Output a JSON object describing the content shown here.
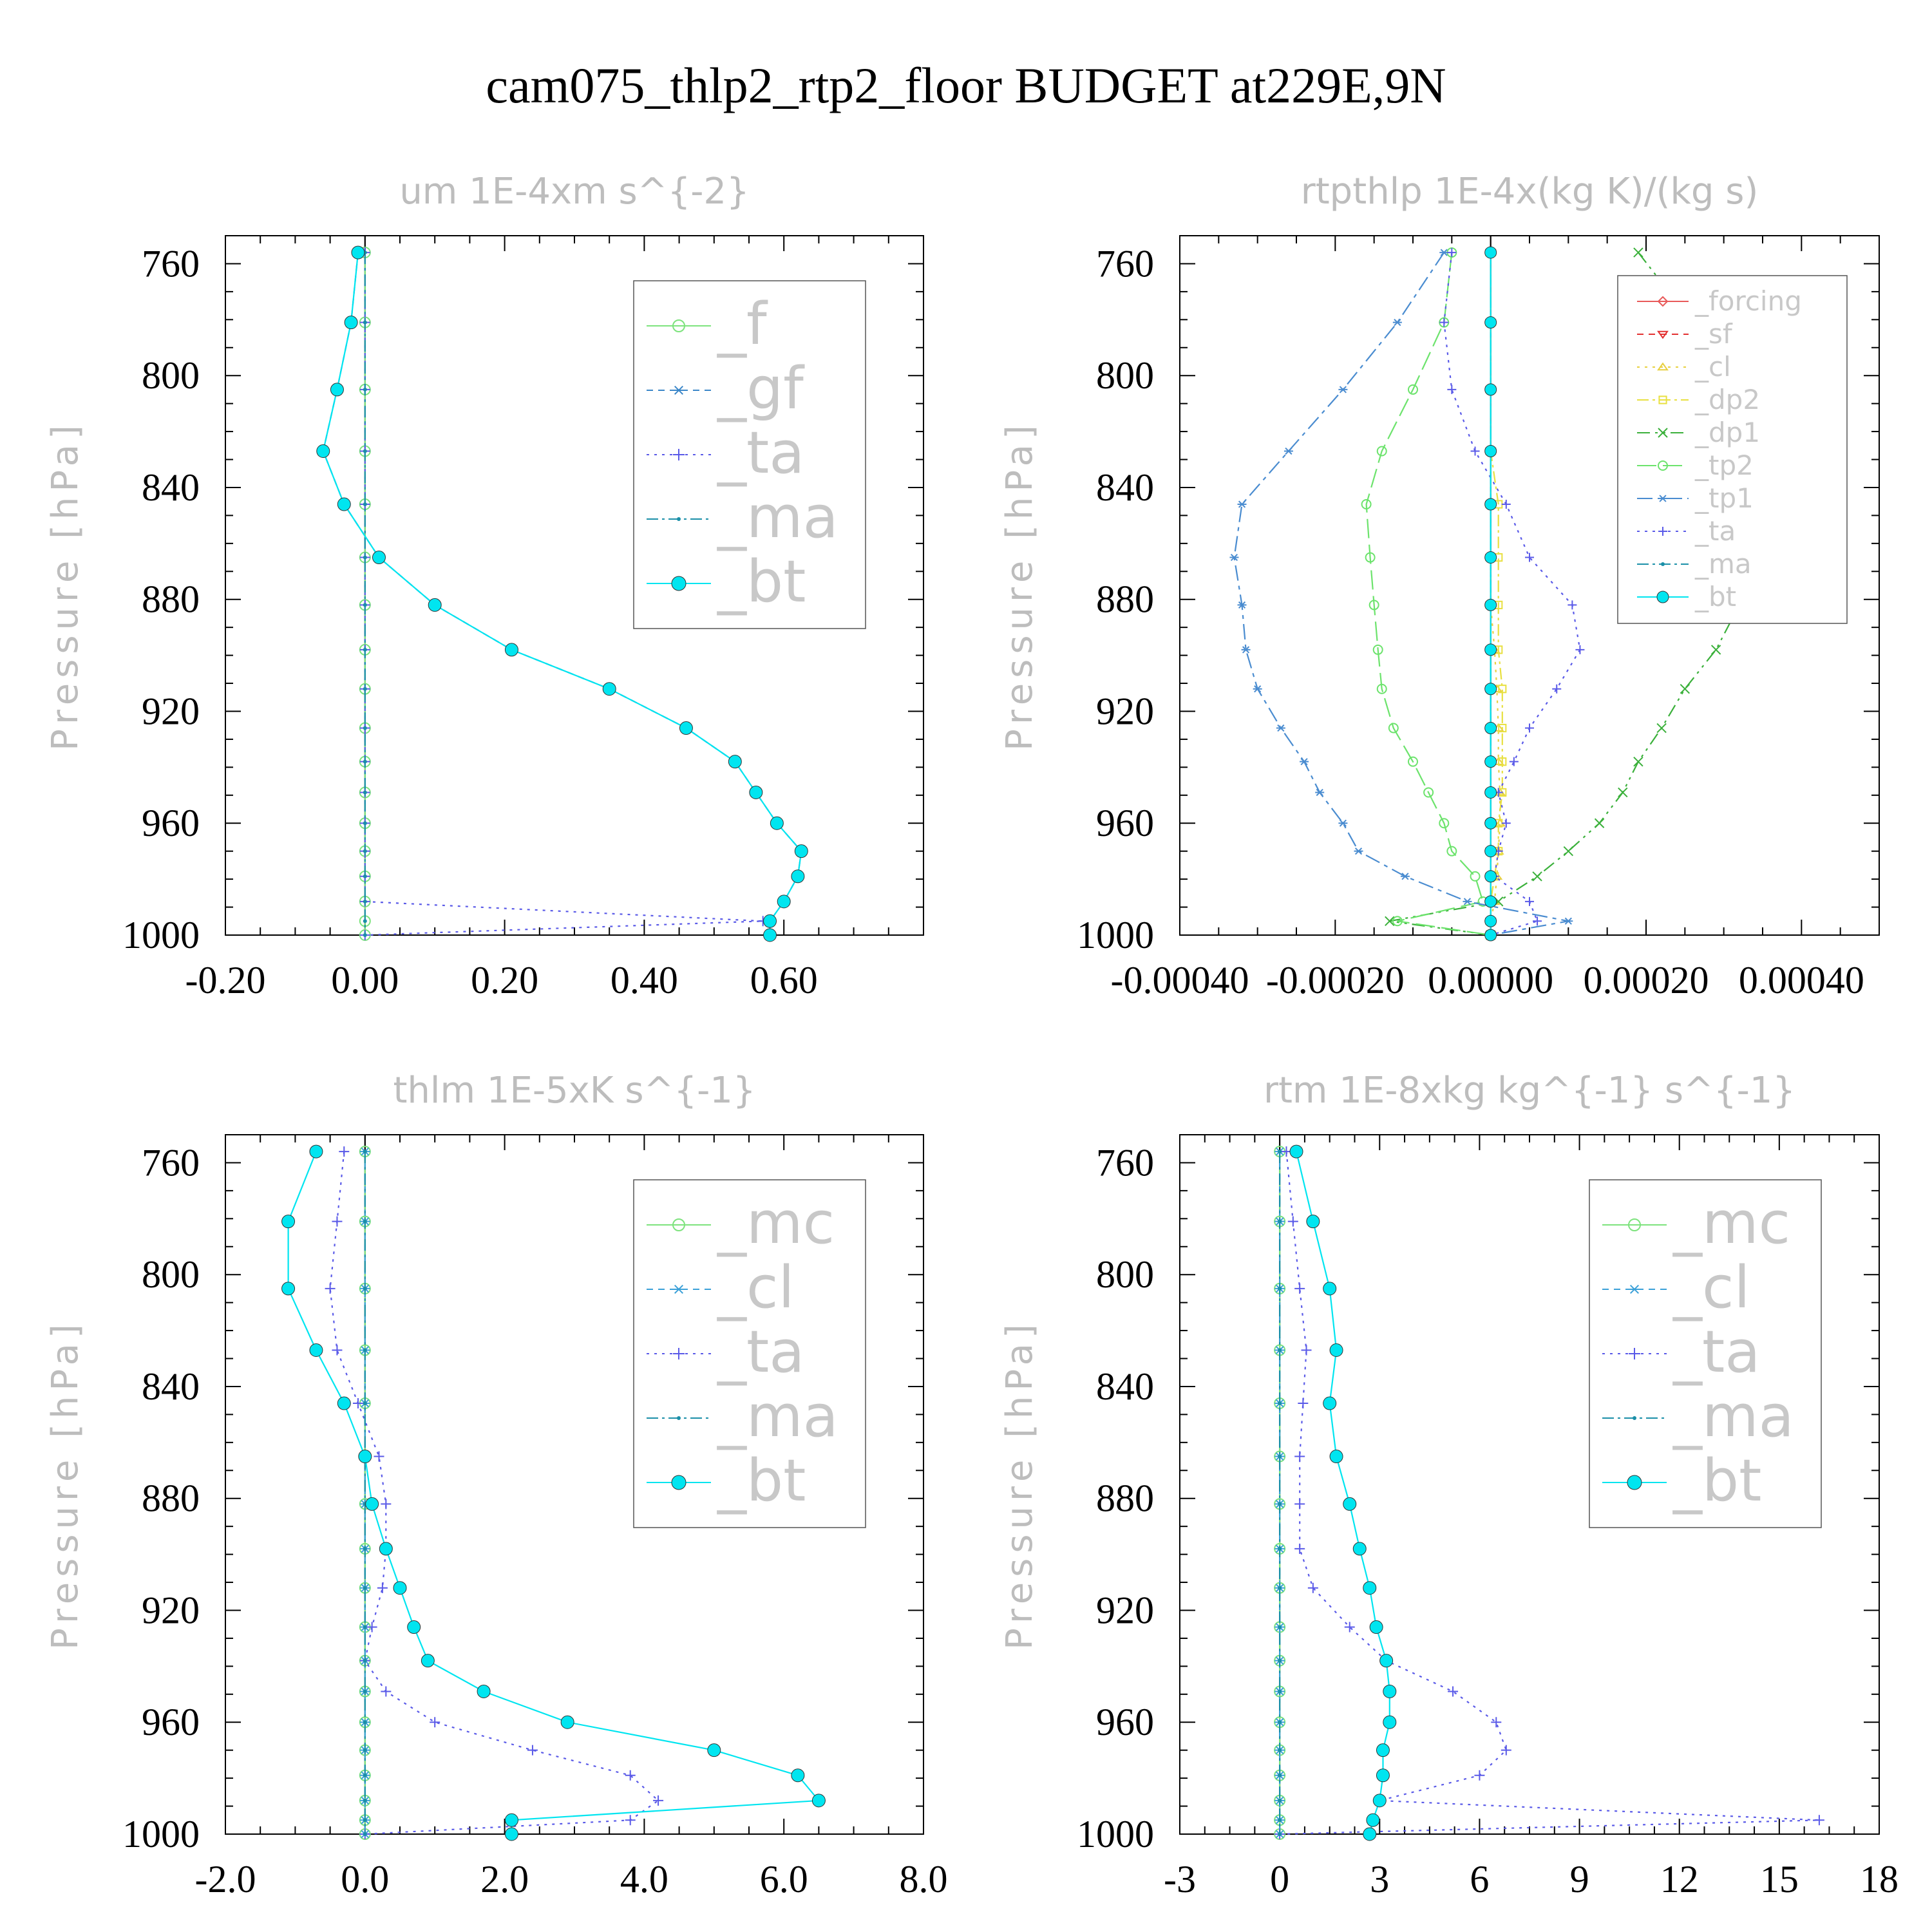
{
  "title": "cam075_thlp2_rtp2_floor  BUDGET at229E,9N",
  "colors": {
    "f": "#7de37d",
    "gf": "#3a86c8",
    "ta": "#5a5ae8",
    "ma": "#1a8fa8",
    "bt": "#00e5f0",
    "forcing": "#e85a5a",
    "sf": "#e33030",
    "cl_yellow": "#e8d040",
    "dp2": "#e8e040",
    "dp1": "#3ab03a",
    "tp2": "#6ce36c",
    "tp1": "#4a8cd0",
    "mc": "#7de37d",
    "cl_blue": "#3aa0d8"
  },
  "chart_data": [
    {
      "type": "line",
      "title": "um   1E-4xm s^{-2}",
      "ylabel": "Pressure [hPa]",
      "xlim": [
        -0.2,
        0.8
      ],
      "ylim": [
        1000,
        750
      ],
      "xticks": [
        -0.2,
        0.0,
        0.2,
        0.4,
        0.6
      ],
      "xtick_labels": [
        "-0.20",
        "0.00",
        "0.20",
        "0.40",
        "0.60"
      ],
      "yticks": [
        760,
        800,
        840,
        880,
        920,
        960,
        1000
      ],
      "ytick_labels": [
        "760",
        "800",
        "840",
        "880",
        "920",
        "960",
        "1000"
      ],
      "legend_position": "top-right",
      "legend_size": "large",
      "y": [
        756,
        781,
        805,
        827,
        846,
        865,
        882,
        898,
        912,
        926,
        938,
        949,
        960,
        970,
        979,
        988,
        995,
        1000
      ],
      "series": [
        {
          "name": "_f",
          "color_key": "f",
          "marker": "circle-open",
          "dash": "",
          "values": [
            0,
            0,
            0,
            0,
            0,
            0,
            0,
            0,
            0,
            0,
            0,
            0,
            0,
            0,
            0,
            0,
            0,
            0
          ]
        },
        {
          "name": "_gf",
          "color_key": "gf",
          "marker": "star",
          "dash": "10,8",
          "values": [
            -0.01,
            -0.02,
            -0.04,
            -0.06,
            -0.03,
            0.02,
            0.1,
            0.21,
            0.35,
            0.46,
            0.53,
            0.56,
            0.59,
            0.625,
            0.62,
            0.6,
            0.58,
            0.58
          ]
        },
        {
          "name": "_ta",
          "color_key": "ta",
          "marker": "plus",
          "dash": "4,8",
          "values": [
            0,
            0,
            0,
            0,
            0,
            0,
            0,
            0,
            0,
            0,
            0,
            0,
            0,
            0,
            0,
            0,
            0.57,
            0
          ]
        },
        {
          "name": "_ma",
          "color_key": "ma",
          "marker": "dot",
          "dash": "18,6,4,6",
          "values": [
            0,
            0,
            0,
            0,
            0,
            0,
            0,
            0,
            0,
            0,
            0,
            0,
            0,
            0,
            0,
            0,
            0,
            0
          ]
        },
        {
          "name": "_bt",
          "color_key": "bt",
          "marker": "filled",
          "dash": "",
          "values": [
            -0.01,
            -0.02,
            -0.04,
            -0.06,
            -0.03,
            0.02,
            0.1,
            0.21,
            0.35,
            0.46,
            0.53,
            0.56,
            0.59,
            0.625,
            0.62,
            0.6,
            0.58,
            0.58
          ]
        }
      ]
    },
    {
      "type": "line",
      "title": "rtpthlp   1E-4x(kg K)/(kg s)",
      "ylabel": "Pressure [hPa]",
      "xlim": [
        -0.0004,
        0.0005
      ],
      "ylim": [
        1000,
        750
      ],
      "xticks": [
        -0.0004,
        -0.0002,
        0.0,
        0.0002,
        0.0004
      ],
      "xtick_labels": [
        "-0.00040",
        "-0.00020",
        "0.00000",
        "0.00020",
        "0.00040"
      ],
      "yticks": [
        760,
        800,
        840,
        880,
        920,
        960,
        1000
      ],
      "ytick_labels": [
        "760",
        "800",
        "840",
        "880",
        "920",
        "960",
        "1000"
      ],
      "legend_position": "top-right",
      "legend_size": "small",
      "y": [
        756,
        781,
        805,
        827,
        846,
        865,
        882,
        898,
        912,
        926,
        938,
        949,
        960,
        970,
        979,
        988,
        995,
        1000
      ],
      "series": [
        {
          "name": "_forcing",
          "color_key": "forcing",
          "marker": "diamond-open",
          "dash": "",
          "values": [
            0,
            0,
            0,
            0,
            0,
            0,
            0,
            0,
            0,
            0,
            0,
            0,
            0,
            0,
            0,
            0,
            0,
            0
          ]
        },
        {
          "name": "_sf",
          "color_key": "sf",
          "marker": "triangle-down",
          "dash": "10,8",
          "values": [
            0,
            0,
            0,
            0,
            0,
            0,
            0,
            0,
            0,
            0,
            0,
            0,
            0,
            0,
            0,
            0,
            0,
            0
          ]
        },
        {
          "name": "_cl",
          "color_key": "cl_yellow",
          "marker": "triangle-up",
          "dash": "4,8",
          "values": [
            0,
            0,
            0,
            0,
            0,
            0,
            0,
            5e-06,
            8e-06,
            1e-05,
            1e-05,
            1.2e-05,
            1.2e-05,
            1e-05,
            8e-06,
            5e-06,
            0,
            0
          ]
        },
        {
          "name": "_dp2",
          "color_key": "dp2",
          "marker": "square-open",
          "dash": "18,6,4,6",
          "values": [
            0,
            0,
            0,
            0,
            1e-05,
            1e-05,
            1e-05,
            1e-05,
            1.5e-05,
            1.5e-05,
            1.5e-05,
            1.5e-05,
            1e-05,
            1e-05,
            5e-06,
            0,
            0,
            0
          ]
        },
        {
          "name": "_dp1",
          "color_key": "dp1",
          "marker": "x",
          "dash": "20,8,4,8,4,8",
          "values": [
            0.00019,
            0.00026,
            0.00033,
            0.00038,
            0.00039,
            0.00036,
            0.00032,
            0.00029,
            0.00025,
            0.00022,
            0.00019,
            0.00017,
            0.00014,
            0.0001,
            6e-05,
            1e-05,
            -0.00013,
            0
          ]
        },
        {
          "name": "_tp2",
          "color_key": "tp2",
          "marker": "circle-open",
          "dash": "30,10",
          "values": [
            -5e-05,
            -6e-05,
            -0.0001,
            -0.00014,
            -0.00016,
            -0.000155,
            -0.00015,
            -0.000145,
            -0.00014,
            -0.000125,
            -0.0001,
            -8e-05,
            -6e-05,
            -5e-05,
            -2e-05,
            -1e-05,
            -0.00012,
            0
          ]
        },
        {
          "name": "_tp1",
          "color_key": "tp1",
          "marker": "star",
          "dash": "24,8,6,8",
          "values": [
            -6e-05,
            -0.00012,
            -0.00019,
            -0.00026,
            -0.00032,
            -0.00033,
            -0.00032,
            -0.000315,
            -0.0003,
            -0.00027,
            -0.00024,
            -0.00022,
            -0.00019,
            -0.00017,
            -0.00011,
            -3e-05,
            0.0001,
            0
          ]
        },
        {
          "name": "_ta",
          "color_key": "ta",
          "marker": "plus",
          "dash": "4,8",
          "values": [
            -5e-05,
            -6e-05,
            -5e-05,
            -2e-05,
            2e-05,
            5e-05,
            0.000105,
            0.000115,
            8.5e-05,
            5e-05,
            3e-05,
            1e-05,
            2e-05,
            1e-05,
            5e-06,
            5e-05,
            6e-05,
            0
          ]
        },
        {
          "name": "_ma",
          "color_key": "ma",
          "marker": "dot",
          "dash": "18,6,4,6",
          "values": [
            0,
            0,
            0,
            0,
            0,
            0,
            0,
            0,
            0,
            0,
            0,
            0,
            0,
            0,
            0,
            0,
            0,
            0
          ]
        },
        {
          "name": "_bt",
          "color_key": "bt",
          "marker": "filled",
          "dash": "",
          "values": [
            0,
            0,
            0,
            0,
            0,
            0,
            0,
            0,
            0,
            0,
            0,
            0,
            0,
            0,
            0,
            0,
            0,
            0
          ]
        }
      ]
    },
    {
      "type": "line",
      "title": "thlm   1E-5xK s^{-1}",
      "ylabel": "Pressure [hPa]",
      "xlim": [
        -2.0,
        8.0
      ],
      "ylim": [
        1000,
        750
      ],
      "xticks": [
        -2.0,
        0.0,
        2.0,
        4.0,
        6.0,
        8.0
      ],
      "xtick_labels": [
        "-2.0",
        "0.0",
        "2.0",
        "4.0",
        "6.0",
        "8.0"
      ],
      "yticks": [
        760,
        800,
        840,
        880,
        920,
        960,
        1000
      ],
      "ytick_labels": [
        "760",
        "800",
        "840",
        "880",
        "920",
        "960",
        "1000"
      ],
      "legend_position": "top-right",
      "legend_size": "large",
      "y": [
        756,
        781,
        805,
        827,
        846,
        865,
        882,
        898,
        912,
        926,
        938,
        949,
        960,
        970,
        979,
        988,
        995,
        1000
      ],
      "series": [
        {
          "name": "_mc",
          "color_key": "mc",
          "marker": "circle-open",
          "dash": "",
          "values": [
            0,
            0,
            0,
            0,
            0,
            0,
            0,
            0,
            0,
            0,
            0,
            0,
            0,
            0,
            0,
            0,
            0,
            0
          ]
        },
        {
          "name": "_cl",
          "color_key": "cl_blue",
          "marker": "star",
          "dash": "10,8",
          "values": [
            0,
            0,
            0,
            0,
            0,
            0,
            0,
            0,
            0,
            0,
            0,
            0,
            0,
            0,
            0,
            0,
            0,
            0
          ]
        },
        {
          "name": "_ta",
          "color_key": "ta",
          "marker": "plus",
          "dash": "4,8",
          "values": [
            -0.3,
            -0.4,
            -0.5,
            -0.4,
            -0.1,
            0.2,
            0.3,
            0.3,
            0.25,
            0.1,
            0,
            0.3,
            1.0,
            2.4,
            3.8,
            4.2,
            3.8,
            0
          ]
        },
        {
          "name": "_ma",
          "color_key": "ma",
          "marker": "dot",
          "dash": "18,6,4,6",
          "values": [
            0,
            0,
            0,
            0,
            0,
            0,
            0,
            0,
            0,
            0,
            0,
            0,
            0,
            0,
            0,
            0,
            0,
            0
          ]
        },
        {
          "name": "_bt",
          "color_key": "bt",
          "marker": "filled",
          "dash": "",
          "values": [
            -0.7,
            -1.1,
            -1.1,
            -0.7,
            -0.3,
            0,
            0.1,
            0.3,
            0.5,
            0.7,
            0.9,
            1.7,
            2.9,
            5.0,
            6.2,
            6.5,
            2.1,
            2.1
          ]
        }
      ]
    },
    {
      "type": "line",
      "title": "rtm   1E-8xkg kg^{-1} s^{-1}",
      "ylabel": "Pressure [hPa]",
      "xlim": [
        -3,
        18
      ],
      "ylim": [
        1000,
        750
      ],
      "xticks": [
        -3,
        0,
        3,
        6,
        9,
        12,
        15,
        18
      ],
      "xtick_labels": [
        "-3",
        "0",
        "3",
        "6",
        "9",
        "12",
        "15",
        "18"
      ],
      "yticks": [
        760,
        800,
        840,
        880,
        920,
        960,
        1000
      ],
      "ytick_labels": [
        "760",
        "800",
        "840",
        "880",
        "920",
        "960",
        "1000"
      ],
      "legend_position": "top-right",
      "legend_size": "large",
      "y": [
        756,
        781,
        805,
        827,
        846,
        865,
        882,
        898,
        912,
        926,
        938,
        949,
        960,
        970,
        979,
        988,
        995,
        1000
      ],
      "series": [
        {
          "name": "_mc",
          "color_key": "mc",
          "marker": "circle-open",
          "dash": "",
          "values": [
            0,
            0,
            0,
            0,
            0,
            0,
            0,
            0,
            0,
            0,
            0,
            0,
            0,
            0,
            0,
            0,
            0,
            0
          ]
        },
        {
          "name": "_cl",
          "color_key": "cl_blue",
          "marker": "star",
          "dash": "10,8",
          "values": [
            0,
            0,
            0,
            0,
            0,
            0,
            0,
            0,
            0,
            0,
            0,
            0,
            0,
            0,
            0,
            0,
            0,
            0
          ]
        },
        {
          "name": "_ta",
          "color_key": "ta",
          "marker": "plus",
          "dash": "4,8",
          "values": [
            0.2,
            0.4,
            0.6,
            0.8,
            0.7,
            0.6,
            0.6,
            0.6,
            1.0,
            2.1,
            3.2,
            5.2,
            6.5,
            6.8,
            6.0,
            3.0,
            16.2,
            0
          ]
        },
        {
          "name": "_ma",
          "color_key": "ma",
          "marker": "dot",
          "dash": "18,6,4,6",
          "values": [
            0,
            0,
            0,
            0,
            0,
            0,
            0,
            0,
            0,
            0,
            0,
            0,
            0,
            0,
            0,
            0,
            0,
            0
          ]
        },
        {
          "name": "_bt",
          "color_key": "bt",
          "marker": "filled",
          "dash": "",
          "values": [
            0.5,
            1.0,
            1.5,
            1.7,
            1.5,
            1.7,
            2.1,
            2.4,
            2.7,
            2.9,
            3.2,
            3.3,
            3.3,
            3.1,
            3.1,
            3.0,
            2.8,
            2.7
          ]
        }
      ]
    }
  ]
}
